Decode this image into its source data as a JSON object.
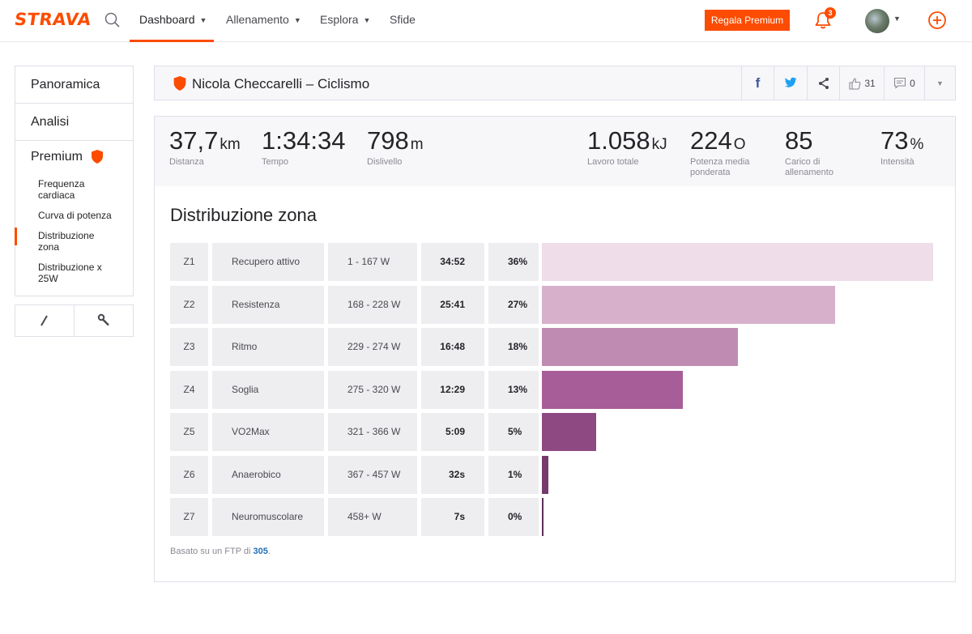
{
  "nav": {
    "logo": "STRAVA",
    "items": [
      {
        "label": "Dashboard",
        "caret": true,
        "active": true
      },
      {
        "label": "Allenamento",
        "caret": true,
        "active": false
      },
      {
        "label": "Esplora",
        "caret": true,
        "active": false
      },
      {
        "label": "Sfide",
        "caret": false,
        "active": false
      }
    ],
    "premium_button": "Regala Premium",
    "notification_count": "3",
    "accent": "#fc4c02"
  },
  "sidebar": {
    "items": [
      {
        "label": "Panoramica"
      },
      {
        "label": "Analisi"
      },
      {
        "label": "Premium"
      }
    ],
    "subitems": [
      {
        "label": "Frequenza cardiaca",
        "selected": false
      },
      {
        "label": "Curva di potenza",
        "selected": false
      },
      {
        "label": "Distribuzione zona",
        "selected": true
      },
      {
        "label": "Distribuzione x 25W",
        "selected": false
      }
    ],
    "tools": [
      "pencil-icon",
      "wrench-icon"
    ]
  },
  "header": {
    "title": "Nicola Checcarelli – Ciclismo",
    "kudos_count": "31",
    "comments_count": "0"
  },
  "stats": {
    "left": [
      {
        "value": "37,7",
        "unit": "km",
        "label": "Distanza"
      },
      {
        "value": "1:34:34",
        "unit": "",
        "label": "Tempo"
      },
      {
        "value": "798",
        "unit": "m",
        "label": "Dislivello"
      }
    ],
    "right": [
      {
        "value": "1.058",
        "unit": "kJ",
        "label": "Lavoro totale"
      },
      {
        "value": "224",
        "unit": "O",
        "label": "Potenza media ponderata"
      },
      {
        "value": "85",
        "unit": "",
        "label": "Carico di allenamento"
      },
      {
        "value": "73",
        "unit": "%",
        "label": "Intensità"
      }
    ]
  },
  "zones": {
    "title": "Distribuzione zona",
    "rows": [
      {
        "zone": "Z1",
        "name": "Recupero attivo",
        "range": "1 - 167 W",
        "time": "34:52",
        "percent": "36%",
        "pct_value": 36,
        "color": "#efdde9"
      },
      {
        "zone": "Z2",
        "name": "Resistenza",
        "range": "168 - 228 W",
        "time": "25:41",
        "percent": "27%",
        "pct_value": 27,
        "color": "#d7b1cc"
      },
      {
        "zone": "Z3",
        "name": "Ritmo",
        "range": "229 - 274 W",
        "time": "16:48",
        "percent": "18%",
        "pct_value": 18,
        "color": "#c08bb2"
      },
      {
        "zone": "Z4",
        "name": "Soglia",
        "range": "275 - 320 W",
        "time": "12:29",
        "percent": "13%",
        "pct_value": 13,
        "color": "#a75d98"
      },
      {
        "zone": "Z5",
        "name": "VO2Max",
        "range": "321 - 366 W",
        "time": "5:09",
        "percent": "5%",
        "pct_value": 5,
        "color": "#8e4983"
      },
      {
        "zone": "Z6",
        "name": "Anaerobico",
        "range": "367 - 457 W",
        "time": "32s",
        "percent": "1%",
        "pct_value": 0.6,
        "color": "#763a6d"
      },
      {
        "zone": "Z7",
        "name": "Neuromuscolare",
        "range": "458+ W",
        "time": "7s",
        "percent": "0%",
        "pct_value": 0.15,
        "color": "#5e2d57"
      }
    ],
    "footnote_prefix": "Basato su un FTP di ",
    "ftp": "305",
    "footnote_suffix": "."
  }
}
